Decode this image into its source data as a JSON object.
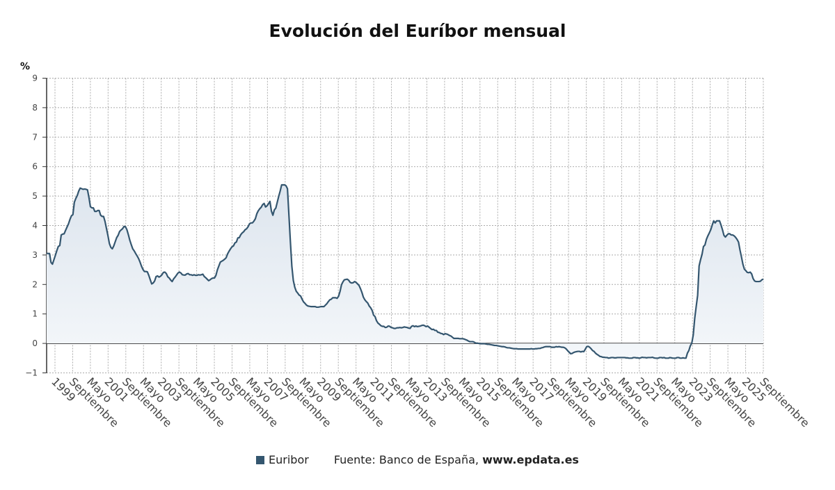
{
  "title": "Evolución del Euríbor mensual",
  "footer": {
    "legend_label": "Euribor",
    "source_prefix": "Fuente: Banco de España,",
    "source_url": "www.epdata.es"
  },
  "colors": {
    "series": "#34566f",
    "area_top": "#dde5ee",
    "area_bottom": "#f4f7fa",
    "grid": "#aaaaaa",
    "zero_line": "#111111",
    "tick_text": "#444444"
  },
  "chart_data": {
    "type": "area",
    "title": "Evolución del Euríbor mensual",
    "ylabel": "%",
    "xlabel": "",
    "ylim": [
      -1,
      9
    ],
    "yticks": [
      -1,
      0,
      1,
      2,
      3,
      4,
      5,
      6,
      7,
      8,
      9
    ],
    "grid": true,
    "legend": "bottom",
    "x_tick_labels": [
      "1999",
      "Septiembre",
      "Mayo",
      "2001",
      "Septiembre",
      "Mayo",
      "2003",
      "Septiembre",
      "Mayo",
      "2005",
      "Septiembre",
      "Mayo",
      "2007",
      "Septiembre",
      "Mayo",
      "2009",
      "Septiembre",
      "Mayo",
      "2011",
      "Septiembre",
      "Mayo",
      "2013",
      "Septiembre",
      "Mayo",
      "2015",
      "Septiembre",
      "Mayo",
      "2017",
      "Septiembre",
      "Mayo",
      "2019",
      "Septiembre",
      "Mayo",
      "2021",
      "Septiembre",
      "Mayo",
      "2023",
      "Septiembre",
      "Mayo",
      "2025",
      "Septiembre"
    ],
    "series": [
      {
        "name": "Euribor",
        "start": "1999-01",
        "frequency": "monthly",
        "values": [
          3.06,
          3.05,
          3.05,
          2.75,
          2.69,
          2.84,
          2.99,
          3.15,
          3.29,
          3.32,
          3.68,
          3.71,
          3.72,
          3.84,
          3.95,
          4.06,
          4.21,
          4.33,
          4.37,
          4.79,
          4.92,
          5.02,
          5.17,
          5.27,
          5.25,
          5.23,
          5.24,
          5.23,
          5.21,
          4.95,
          4.64,
          4.6,
          4.6,
          4.48,
          4.48,
          4.51,
          4.51,
          4.35,
          4.31,
          4.31,
          4.14,
          3.9,
          3.66,
          3.39,
          3.26,
          3.21,
          3.31,
          3.45,
          3.59,
          3.67,
          3.8,
          3.85,
          3.89,
          3.97,
          3.96,
          3.86,
          3.69,
          3.5,
          3.35,
          3.21,
          3.14,
          3.05,
          2.97,
          2.88,
          2.76,
          2.62,
          2.51,
          2.44,
          2.44,
          2.43,
          2.31,
          2.16,
          2.02,
          2.05,
          2.12,
          2.27,
          2.29,
          2.25,
          2.28,
          2.33,
          2.41,
          2.42,
          2.37,
          2.26,
          2.22,
          2.15,
          2.1,
          2.19,
          2.25,
          2.32,
          2.39,
          2.42,
          2.39,
          2.33,
          2.32,
          2.32,
          2.36,
          2.37,
          2.33,
          2.33,
          2.31,
          2.33,
          2.31,
          2.31,
          2.33,
          2.32,
          2.33,
          2.35,
          2.27,
          2.23,
          2.18,
          2.13,
          2.16,
          2.2,
          2.22,
          2.22,
          2.31,
          2.5,
          2.63,
          2.76,
          2.79,
          2.82,
          2.86,
          2.91,
          3.04,
          3.13,
          3.21,
          3.28,
          3.31,
          3.41,
          3.44,
          3.58,
          3.59,
          3.69,
          3.75,
          3.79,
          3.86,
          3.89,
          3.96,
          4.06,
          4.09,
          4.09,
          4.15,
          4.23,
          4.4,
          4.5,
          4.57,
          4.62,
          4.71,
          4.75,
          4.63,
          4.67,
          4.74,
          4.82,
          4.49,
          4.35,
          4.53,
          4.59,
          4.79,
          4.99,
          5.17,
          5.38,
          5.38,
          5.38,
          5.35,
          5.25,
          4.35,
          3.45,
          2.62,
          2.14,
          1.91,
          1.77,
          1.71,
          1.64,
          1.61,
          1.5,
          1.41,
          1.36,
          1.3,
          1.27,
          1.26,
          1.25,
          1.25,
          1.25,
          1.25,
          1.23,
          1.23,
          1.24,
          1.25,
          1.25,
          1.25,
          1.3,
          1.35,
          1.42,
          1.48,
          1.5,
          1.55,
          1.55,
          1.55,
          1.53,
          1.6,
          1.76,
          1.99,
          2.09,
          2.16,
          2.17,
          2.18,
          2.14,
          2.07,
          2.05,
          2.06,
          2.1,
          2.07,
          2.02,
          1.97,
          1.86,
          1.73,
          1.57,
          1.48,
          1.42,
          1.37,
          1.27,
          1.21,
          1.12,
          0.96,
          0.91,
          0.77,
          0.69,
          0.65,
          0.6,
          0.58,
          0.58,
          0.54,
          0.55,
          0.59,
          0.58,
          0.54,
          0.53,
          0.51,
          0.51,
          0.53,
          0.53,
          0.54,
          0.53,
          0.54,
          0.56,
          0.55,
          0.54,
          0.52,
          0.51,
          0.58,
          0.6,
          0.57,
          0.59,
          0.57,
          0.58,
          0.59,
          0.61,
          0.62,
          0.6,
          0.57,
          0.59,
          0.55,
          0.51,
          0.47,
          0.48,
          0.44,
          0.44,
          0.38,
          0.37,
          0.34,
          0.33,
          0.3,
          0.33,
          0.32,
          0.3,
          0.27,
          0.25,
          0.21,
          0.17,
          0.17,
          0.17,
          0.17,
          0.16,
          0.16,
          0.16,
          0.15,
          0.13,
          0.11,
          0.08,
          0.06,
          0.06,
          0.06,
          0.04,
          0.01,
          0.01,
          0.0,
          -0.01,
          -0.01,
          -0.01,
          -0.01,
          -0.02,
          -0.03,
          -0.03,
          -0.04,
          -0.05,
          -0.06,
          -0.07,
          -0.07,
          -0.08,
          -0.09,
          -0.1,
          -0.11,
          -0.11,
          -0.12,
          -0.14,
          -0.15,
          -0.15,
          -0.16,
          -0.17,
          -0.18,
          -0.18,
          -0.18,
          -0.19,
          -0.19,
          -0.19,
          -0.19,
          -0.19,
          -0.19,
          -0.19,
          -0.19,
          -0.19,
          -0.18,
          -0.19,
          -0.19,
          -0.18,
          -0.18,
          -0.17,
          -0.17,
          -0.15,
          -0.14,
          -0.12,
          -0.11,
          -0.11,
          -0.11,
          -0.11,
          -0.13,
          -0.13,
          -0.13,
          -0.11,
          -0.12,
          -0.11,
          -0.12,
          -0.13,
          -0.13,
          -0.15,
          -0.19,
          -0.25,
          -0.3,
          -0.35,
          -0.34,
          -0.31,
          -0.29,
          -0.28,
          -0.27,
          -0.27,
          -0.29,
          -0.27,
          -0.28,
          -0.2,
          -0.11,
          -0.1,
          -0.13,
          -0.18,
          -0.24,
          -0.27,
          -0.33,
          -0.37,
          -0.4,
          -0.44,
          -0.45,
          -0.47,
          -0.47,
          -0.48,
          -0.48,
          -0.5,
          -0.49,
          -0.48,
          -0.48,
          -0.49,
          -0.49,
          -0.48,
          -0.48,
          -0.48,
          -0.48,
          -0.48,
          -0.48,
          -0.49,
          -0.49,
          -0.5,
          -0.5,
          -0.5,
          -0.48,
          -0.48,
          -0.49,
          -0.49,
          -0.5,
          -0.49,
          -0.47,
          -0.48,
          -0.48,
          -0.49,
          -0.48,
          -0.48,
          -0.48,
          -0.47,
          -0.49,
          -0.5,
          -0.5,
          -0.5,
          -0.48,
          -0.48,
          -0.49,
          -0.48,
          -0.5,
          -0.5,
          -0.5,
          -0.48,
          -0.49,
          -0.5,
          -0.5,
          -0.5,
          -0.48,
          -0.48,
          -0.5,
          -0.5,
          -0.49,
          -0.5,
          -0.5,
          -0.33,
          -0.24,
          -0.08,
          0.01,
          0.29,
          0.85,
          1.25,
          1.63,
          2.63,
          2.84,
          3.02,
          3.29,
          3.34,
          3.53,
          3.65,
          3.75,
          3.86,
          4.02,
          4.16,
          4.09,
          4.16,
          4.16,
          4.16,
          4.02,
          3.86,
          3.67,
          3.61,
          3.67,
          3.72,
          3.72,
          3.68,
          3.68,
          3.65,
          3.6,
          3.53,
          3.44,
          3.17,
          2.94,
          2.69,
          2.52,
          2.47,
          2.41,
          2.4,
          2.42,
          2.36,
          2.2,
          2.12,
          2.1,
          2.1,
          2.1,
          2.11,
          2.16,
          2.18
        ]
      }
    ]
  }
}
